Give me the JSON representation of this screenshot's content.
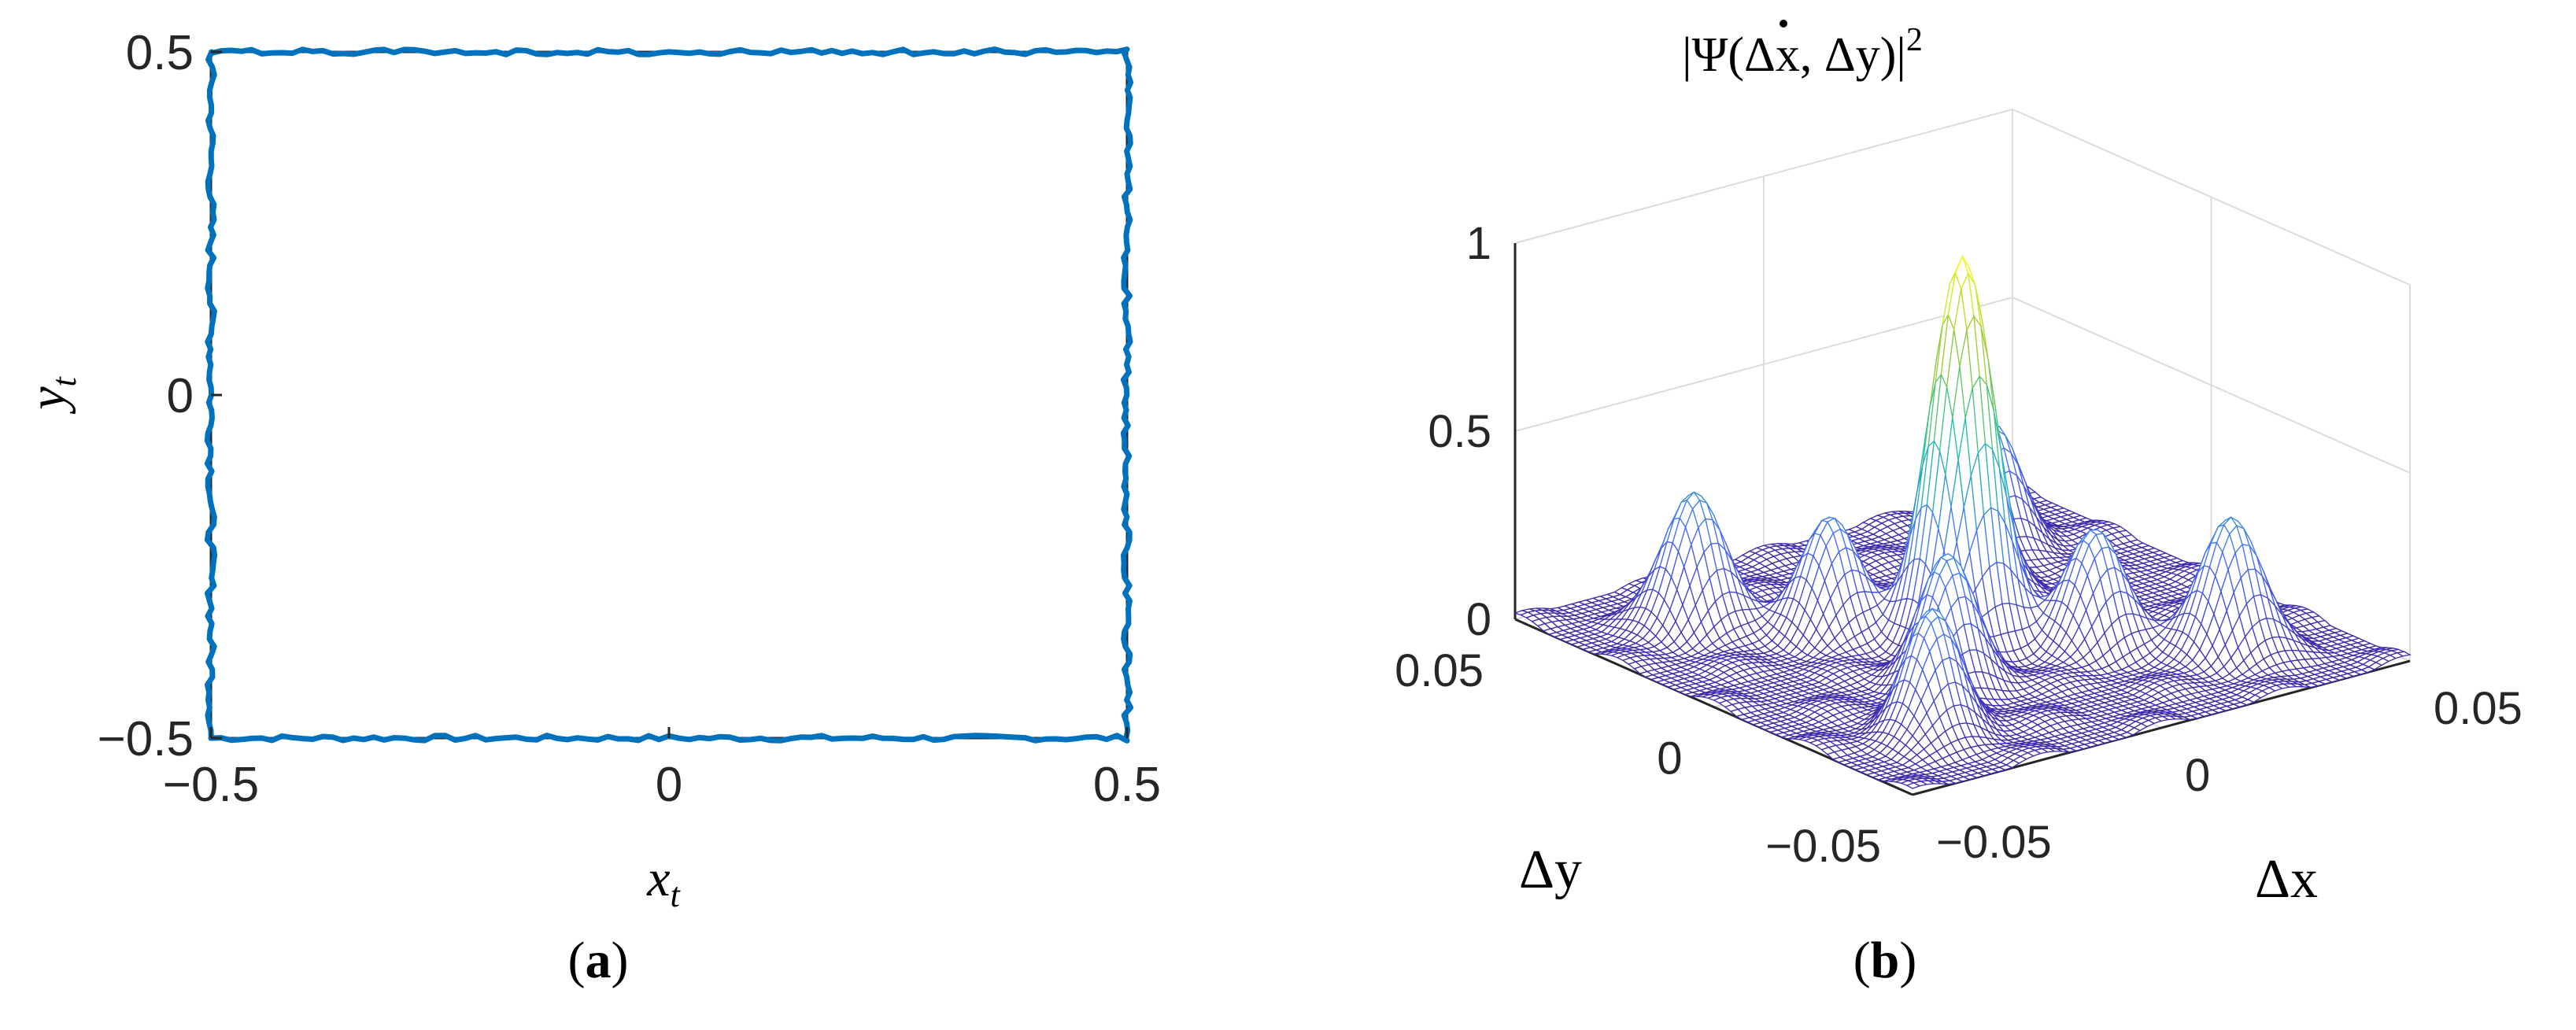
{
  "figure": {
    "panel_a_label": "a",
    "panel_b_label": "b"
  },
  "chart_data": [
    {
      "type": "line",
      "panel": "a",
      "title": "",
      "xlabel": "x",
      "xlabel_sub": "t",
      "ylabel": "y",
      "ylabel_sub": "t",
      "xlim": [
        -0.5,
        0.5
      ],
      "ylim": [
        -0.5,
        0.5
      ],
      "xticks": [
        -0.5,
        0,
        0.5
      ],
      "xtick_labels": [
        "−0.5",
        "0",
        "0.5"
      ],
      "yticks": [
        -0.5,
        0,
        0.5
      ],
      "ytick_labels": [
        "−0.5",
        "0",
        "0.5"
      ],
      "grid": false,
      "series": [
        {
          "color": "#0072BD",
          "description_points": [
            [
              -0.5,
              -0.5
            ],
            [
              0.5,
              -0.5
            ],
            [
              0.5,
              0.5
            ],
            [
              -0.5,
              0.5
            ],
            [
              -0.5,
              -0.5
            ]
          ],
          "jitter": 0.004
        }
      ]
    },
    {
      "type": "surface",
      "panel": "b",
      "title": "|Ψ̇(Δx, Δy)|²",
      "title_parts": {
        "prefix": "|",
        "psi": "Ψ",
        "args": "(Δx, Δy)",
        "suffix": "|",
        "power": "2"
      },
      "xlabel": "Δx",
      "ylabel": "Δy",
      "zlabel": "",
      "xlim": [
        -0.05,
        0.05
      ],
      "ylim": [
        -0.05,
        0.05
      ],
      "zlim": [
        0,
        1
      ],
      "xtick_labels": [
        "−0.05",
        "0",
        "0.05"
      ],
      "ytick_labels": [
        "−0.05",
        "0",
        "0.05"
      ],
      "ztick_labels": [
        "0",
        "0.5",
        "1"
      ],
      "zticks": [
        0,
        0.5,
        1
      ],
      "grid": true,
      "colormap": "parula",
      "colors": {
        "low": "#3e26a8",
        "mid": "#1fc3aa",
        "high": "#f9fb0e"
      },
      "peak": {
        "x": 0,
        "y": 0,
        "z": 1
      },
      "side_lobes": [
        {
          "x": -0.03,
          "y": 0.03,
          "z": 0.36
        },
        {
          "x": 0.03,
          "y": -0.03,
          "z": 0.36
        },
        {
          "x": -0.03,
          "y": -0.03,
          "z": 0.33
        },
        {
          "x": 0.03,
          "y": 0.03,
          "z": 0.33
        },
        {
          "x": -0.015,
          "y": -0.015,
          "z": 0.34
        },
        {
          "x": 0.015,
          "y": 0.015,
          "z": 0.34
        },
        {
          "x": -0.015,
          "y": 0.015,
          "z": 0.3
        },
        {
          "x": 0.015,
          "y": -0.015,
          "z": 0.3
        }
      ]
    }
  ]
}
